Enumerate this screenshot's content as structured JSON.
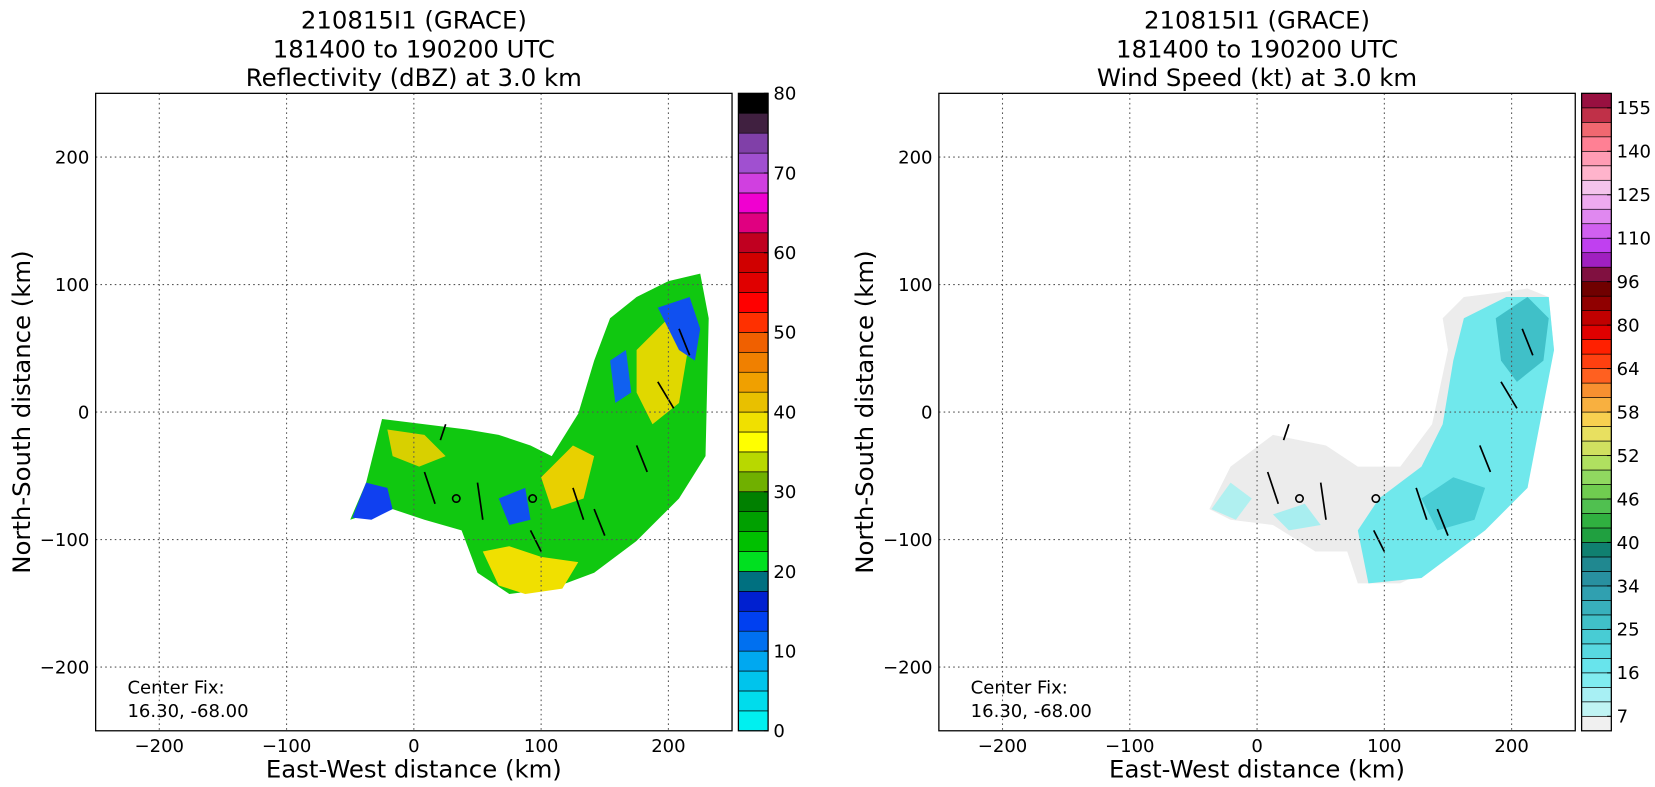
{
  "chart_data": [
    {
      "type": "heatmap",
      "title": [
        "210815I1 (GRACE)",
        "181400 to 190200 UTC",
        "Reflectivity (dBZ) at 3.0 km"
      ],
      "x_label": "East-West distance (km)",
      "y_label": "North-South distance (km)",
      "xlim": [
        -250,
        250
      ],
      "ylim": [
        -250,
        250
      ],
      "xticks": [
        {
          "value": -200,
          "label": "−200"
        },
        {
          "value": -100,
          "label": "−100"
        },
        0,
        100,
        200
      ],
      "yticks": [
        {
          "value": -200,
          "label": "−200"
        },
        {
          "value": -100,
          "label": "−100"
        },
        0,
        100,
        200
      ],
      "grid": true,
      "annotation": [
        "Center Fix:",
        "16.30, -68.00"
      ],
      "colorbar": {
        "lim": [
          0,
          80
        ],
        "ticks": [
          0,
          10,
          20,
          30,
          40,
          50,
          60,
          70,
          80
        ],
        "colors": [
          "#00f0f0",
          "#00dcec",
          "#00c4ec",
          "#00a8f0",
          "#0070f0",
          "#0040f0",
          "#0020d0",
          "#007080",
          "#00e020",
          "#00c000",
          "#00a000",
          "#008000",
          "#70b000",
          "#b8d800",
          "#ffff00",
          "#f0e000",
          "#e8c000",
          "#f0a000",
          "#f08000",
          "#f06000",
          "#ff3000",
          "#ff0000",
          "#e00000",
          "#d00000",
          "#c00020",
          "#e00080",
          "#f000d0",
          "#d040e0",
          "#a050d0",
          "#8040a8",
          "#402040",
          "#000000"
        ]
      }
    },
    {
      "type": "heatmap",
      "title": [
        "210815I1 (GRACE)",
        "181400 to 190200 UTC",
        "Wind Speed (kt) at 3.0 km"
      ],
      "x_label": "East-West distance (km)",
      "y_label": "North-South distance (km)",
      "xlim": [
        -250,
        250
      ],
      "ylim": [
        -250,
        250
      ],
      "xticks": [
        {
          "value": -200,
          "label": "−200"
        },
        {
          "value": -100,
          "label": "−100"
        },
        0,
        100,
        200
      ],
      "yticks": [
        {
          "value": -200,
          "label": "−200"
        },
        {
          "value": -100,
          "label": "−100"
        },
        0,
        100,
        200
      ],
      "grid": true,
      "annotation": [
        "Center Fix:",
        "16.30, -68.00"
      ],
      "colorbar": {
        "ticks": [
          7,
          16,
          25,
          34,
          40,
          46,
          52,
          58,
          64,
          80,
          96,
          110,
          125,
          140,
          155
        ],
        "colors": [
          "#f0f0f0",
          "#c0f4f4",
          "#a8f0f4",
          "#80ecf0",
          "#68e4ec",
          "#58d8e0",
          "#48ccd4",
          "#40c0c8",
          "#38b0bc",
          "#30a0b0",
          "#2890a0",
          "#208890",
          "#108070",
          "#20a040",
          "#30b040",
          "#50c050",
          "#70cc50",
          "#90d860",
          "#b0e060",
          "#d0e060",
          "#e8e060",
          "#f8d050",
          "#f8b040",
          "#f89030",
          "#ff6020",
          "#ff4010",
          "#ff2000",
          "#e00000",
          "#c00000",
          "#900000",
          "#700000",
          "#801040",
          "#a020c0",
          "#c040f0",
          "#d060f0",
          "#e088f0",
          "#eeaaf0",
          "#f4c4ec",
          "#ffb4cc",
          "#ff9cb4",
          "#ff8094",
          "#f06870",
          "#c03048",
          "#981040"
        ]
      }
    }
  ]
}
